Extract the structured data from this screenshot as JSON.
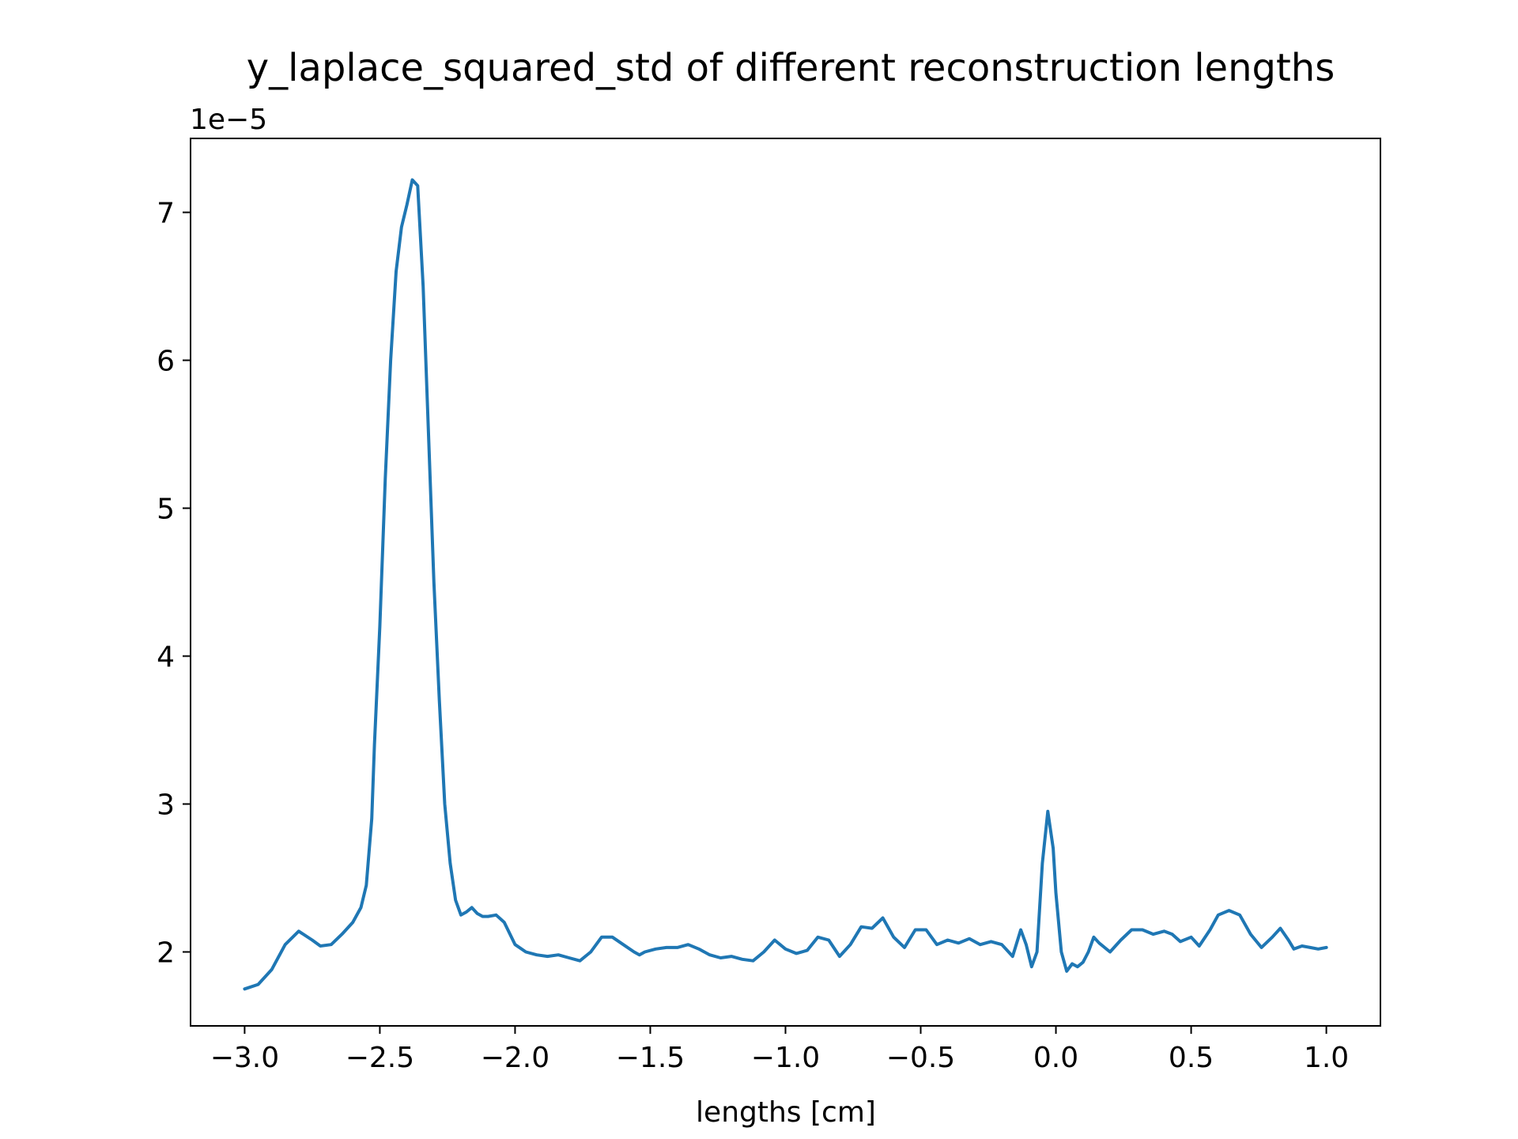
{
  "chart_data": {
    "type": "line",
    "title": "y_laplace_squared_std of different reconstruction lengths",
    "xlabel": "lengths [cm]",
    "ylabel": "",
    "y_offset_label": "1e−5",
    "xlim": [
      -3.2,
      1.2
    ],
    "ylim": [
      1.5,
      7.5
    ],
    "x_ticks": [
      -3.0,
      -2.5,
      -2.0,
      -1.5,
      -1.0,
      -0.5,
      0.0,
      0.5,
      1.0
    ],
    "x_tick_labels": [
      "−3.0",
      "−2.5",
      "−2.0",
      "−1.5",
      "−1.0",
      "−0.5",
      "0.0",
      "0.5",
      "1.0"
    ],
    "y_ticks": [
      2,
      3,
      4,
      5,
      6,
      7
    ],
    "y_tick_labels": [
      "2",
      "3",
      "4",
      "5",
      "6",
      "7"
    ],
    "grid": false,
    "line_color": "#1f77b4",
    "series": [
      {
        "x": [
          -3.0,
          -2.95,
          -2.9,
          -2.85,
          -2.8,
          -2.75,
          -2.72,
          -2.68,
          -2.64,
          -2.6,
          -2.57,
          -2.55,
          -2.53,
          -2.52,
          -2.5,
          -2.48,
          -2.46,
          -2.44,
          -2.42,
          -2.4,
          -2.38,
          -2.36,
          -2.34,
          -2.32,
          -2.3,
          -2.28,
          -2.26,
          -2.24,
          -2.22,
          -2.2,
          -2.18,
          -2.16,
          -2.14,
          -2.12,
          -2.1,
          -2.07,
          -2.04,
          -2.0,
          -1.96,
          -1.92,
          -1.88,
          -1.84,
          -1.8,
          -1.76,
          -1.72,
          -1.68,
          -1.64,
          -1.6,
          -1.56,
          -1.54,
          -1.52,
          -1.48,
          -1.44,
          -1.4,
          -1.36,
          -1.32,
          -1.28,
          -1.24,
          -1.2,
          -1.16,
          -1.12,
          -1.08,
          -1.04,
          -1.0,
          -0.96,
          -0.92,
          -0.88,
          -0.84,
          -0.8,
          -0.76,
          -0.72,
          -0.68,
          -0.64,
          -0.6,
          -0.56,
          -0.52,
          -0.48,
          -0.44,
          -0.4,
          -0.36,
          -0.32,
          -0.28,
          -0.24,
          -0.2,
          -0.16,
          -0.13,
          -0.11,
          -0.09,
          -0.07,
          -0.05,
          -0.03,
          -0.01,
          0.0,
          0.02,
          0.04,
          0.06,
          0.08,
          0.1,
          0.12,
          0.14,
          0.16,
          0.2,
          0.24,
          0.28,
          0.32,
          0.36,
          0.4,
          0.43,
          0.46,
          0.5,
          0.53,
          0.57,
          0.6,
          0.64,
          0.68,
          0.72,
          0.76,
          0.8,
          0.83,
          0.86,
          0.88,
          0.91,
          0.94,
          0.97,
          1.0
        ],
        "y": [
          1.75,
          1.78,
          1.88,
          2.05,
          2.14,
          2.08,
          2.04,
          2.05,
          2.12,
          2.2,
          2.3,
          2.45,
          2.9,
          3.4,
          4.2,
          5.2,
          6.0,
          6.6,
          6.9,
          7.05,
          7.22,
          7.18,
          6.5,
          5.5,
          4.5,
          3.7,
          3.0,
          2.6,
          2.35,
          2.25,
          2.27,
          2.3,
          2.26,
          2.24,
          2.24,
          2.25,
          2.2,
          2.05,
          2.0,
          1.98,
          1.97,
          1.98,
          1.96,
          1.94,
          2.0,
          2.1,
          2.1,
          2.05,
          2.0,
          1.98,
          2.0,
          2.02,
          2.03,
          2.03,
          2.05,
          2.02,
          1.98,
          1.96,
          1.97,
          1.95,
          1.94,
          2.0,
          2.08,
          2.02,
          1.99,
          2.01,
          2.1,
          2.08,
          1.97,
          2.05,
          2.17,
          2.16,
          2.23,
          2.1,
          2.03,
          2.15,
          2.15,
          2.05,
          2.08,
          2.06,
          2.09,
          2.05,
          2.07,
          2.05,
          1.97,
          2.15,
          2.05,
          1.9,
          2.0,
          2.6,
          2.95,
          2.7,
          2.4,
          2.0,
          1.87,
          1.92,
          1.9,
          1.93,
          2.0,
          2.1,
          2.06,
          2.0,
          2.08,
          2.15,
          2.15,
          2.12,
          2.14,
          2.12,
          2.07,
          2.1,
          2.04,
          2.15,
          2.25,
          2.28,
          2.25,
          2.12,
          2.03,
          2.1,
          2.16,
          2.08,
          2.02,
          2.04,
          2.03,
          2.02,
          2.03
        ]
      }
    ]
  }
}
